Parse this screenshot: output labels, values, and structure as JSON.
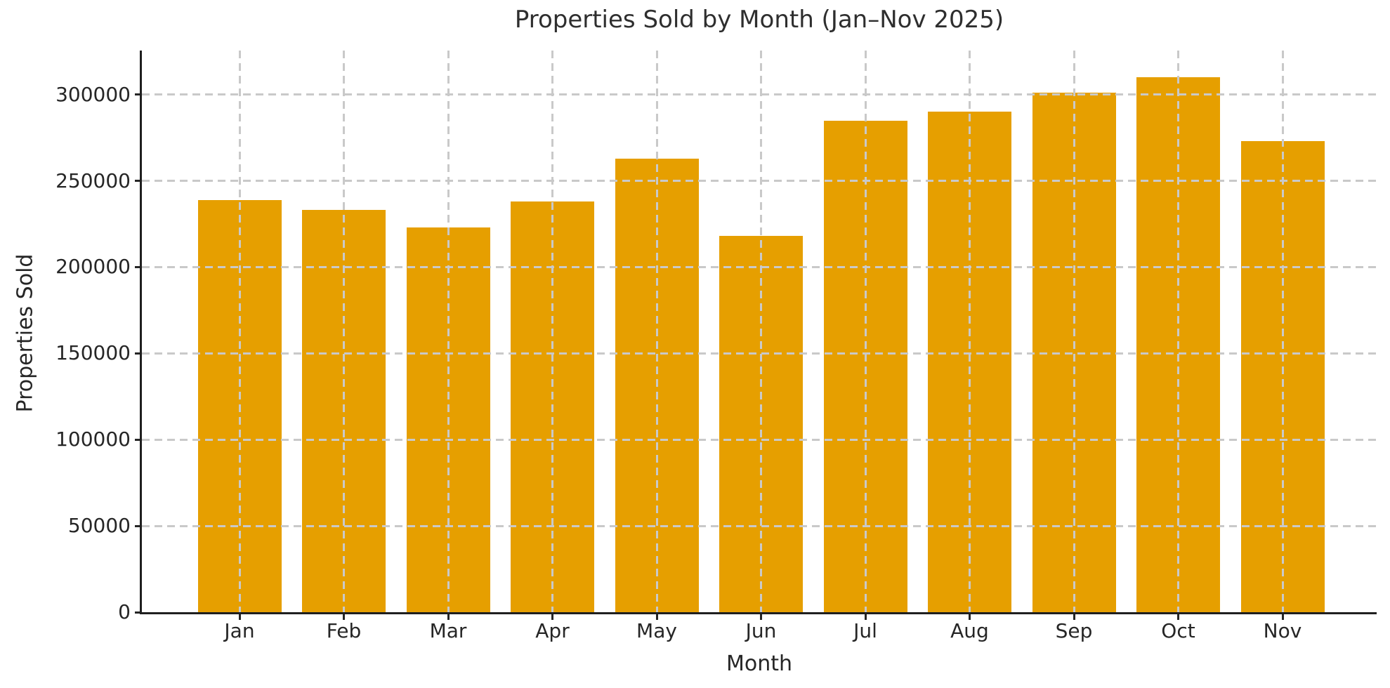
{
  "chart_data": {
    "type": "bar",
    "title": "Properties Sold by Month (Jan–Nov 2025)",
    "xlabel": "Month",
    "ylabel": "Properties Sold",
    "categories": [
      "Jan",
      "Feb",
      "Mar",
      "Apr",
      "May",
      "Jun",
      "Jul",
      "Aug",
      "Sep",
      "Oct",
      "Nov"
    ],
    "values": [
      239000,
      233000,
      223000,
      238000,
      263000,
      218000,
      285000,
      290000,
      301000,
      310000,
      273000
    ],
    "yticks": [
      0,
      50000,
      100000,
      150000,
      200000,
      250000,
      300000
    ],
    "ylim": [
      0,
      325500
    ],
    "bar_color": "#E69F00",
    "grid": {
      "axis": "both",
      "style": "dashed",
      "color": "#c9c9c9",
      "above_bars": true
    },
    "legend": "none",
    "spines": [
      "left",
      "bottom"
    ]
  }
}
